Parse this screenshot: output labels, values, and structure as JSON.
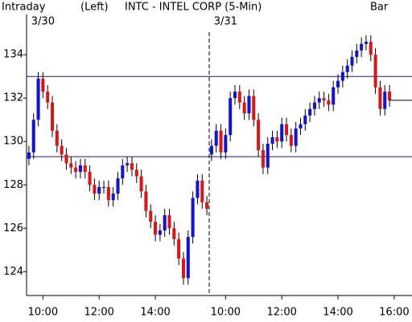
{
  "chart_data": {
    "type": "candlestick",
    "title": "INTC - INTEL CORP (5-Min)",
    "mode_label": "Intraday",
    "axis_side_label": "(Left)",
    "style_label": "Bar",
    "dates": [
      {
        "value": 3,
        "label": "3/30"
      },
      {
        "value": 42,
        "label": "3/31"
      }
    ],
    "xlim": [
      -0.5,
      81.8
    ],
    "xticks": [
      {
        "value": 3,
        "label": "10:00"
      },
      {
        "value": 15,
        "label": "12:00"
      },
      {
        "value": 27,
        "label": "14:00"
      },
      {
        "value": 42,
        "label": "10:00"
      },
      {
        "value": 54,
        "label": "12:00"
      },
      {
        "value": 66,
        "label": "14:00"
      },
      {
        "value": 78,
        "label": "16:00"
      }
    ],
    "ylim": [
      122.9,
      135.6
    ],
    "yticks": [
      124,
      126,
      128,
      130,
      132,
      134
    ],
    "reference_lines": [
      133.0,
      129.3
    ],
    "up_color": "#1414c8",
    "down_color": "#d81818",
    "open": [
      129.2,
      129.5,
      131.0,
      132.9,
      132.3,
      131.8,
      130.5,
      129.8,
      129.4,
      129.0,
      128.8,
      128.6,
      128.9,
      128.6,
      128.0,
      127.6,
      127.9,
      127.9,
      127.3,
      127.6,
      128.3,
      128.9,
      129.0,
      128.7,
      128.4,
      127.7,
      126.8,
      126.3,
      125.7,
      125.9,
      126.6,
      126.0,
      125.5,
      124.6,
      123.7,
      125.6,
      127.4,
      128.2,
      127.2,
      129.4,
      129.8,
      130.5,
      129.5,
      130.3,
      132.0,
      132.3,
      131.8,
      131.3,
      132.1,
      131.0,
      129.6,
      128.8,
      129.9,
      130.2,
      130.0,
      130.8,
      130.3,
      129.8,
      130.6,
      130.8,
      131.2,
      131.5,
      131.8,
      132.0,
      131.9,
      131.7,
      132.5,
      132.8,
      133.2,
      133.5,
      133.9,
      134.2,
      134.5,
      134.6,
      134.0,
      132.5,
      131.5,
      132.3
    ],
    "high": [
      129.8,
      131.3,
      133.2,
      133.2,
      132.6,
      132.1,
      130.8,
      130.1,
      129.7,
      129.3,
      129.1,
      129.2,
      129.2,
      128.9,
      128.3,
      128.2,
      128.2,
      128.2,
      127.9,
      128.6,
      129.2,
      129.3,
      129.3,
      129.0,
      128.7,
      128.0,
      127.1,
      126.6,
      126.2,
      126.9,
      126.9,
      126.3,
      125.8,
      124.9,
      125.9,
      127.7,
      128.5,
      128.5,
      127.5,
      130.1,
      130.8,
      130.8,
      130.6,
      132.3,
      132.6,
      132.6,
      132.1,
      132.4,
      132.4,
      131.3,
      129.9,
      130.2,
      130.5,
      130.5,
      131.1,
      131.1,
      130.6,
      130.9,
      131.1,
      131.5,
      131.8,
      132.1,
      132.3,
      132.3,
      132.2,
      132.8,
      133.1,
      133.5,
      133.8,
      134.2,
      134.5,
      134.8,
      134.9,
      134.9,
      134.3,
      132.8,
      132.6,
      132.6
    ],
    "low": [
      128.9,
      129.2,
      130.7,
      132.0,
      131.5,
      130.2,
      129.5,
      129.1,
      128.7,
      128.5,
      128.3,
      128.3,
      128.3,
      127.7,
      127.3,
      127.3,
      127.6,
      127.0,
      127.0,
      127.3,
      128.0,
      128.6,
      128.4,
      128.1,
      127.4,
      126.5,
      126.0,
      125.4,
      125.4,
      125.6,
      125.7,
      125.2,
      124.3,
      123.4,
      123.4,
      125.3,
      127.1,
      126.9,
      126.6,
      129.1,
      129.5,
      129.2,
      129.2,
      130.0,
      131.7,
      131.5,
      131.0,
      131.0,
      130.7,
      129.3,
      128.5,
      128.5,
      129.6,
      129.7,
      129.7,
      130.0,
      129.5,
      129.5,
      130.3,
      130.5,
      130.9,
      131.2,
      131.5,
      131.6,
      131.4,
      131.4,
      132.2,
      132.5,
      132.9,
      133.2,
      133.6,
      133.9,
      134.2,
      133.7,
      132.2,
      131.2,
      131.2,
      131.6
    ],
    "close": [
      129.5,
      131.0,
      132.9,
      132.3,
      131.8,
      130.5,
      129.8,
      129.4,
      129.0,
      128.8,
      128.6,
      128.9,
      128.6,
      128.0,
      127.6,
      127.9,
      127.9,
      127.3,
      127.6,
      128.3,
      128.9,
      129.0,
      128.7,
      128.4,
      127.7,
      126.8,
      126.3,
      125.7,
      125.9,
      126.6,
      126.0,
      125.5,
      124.6,
      123.7,
      125.6,
      127.4,
      128.2,
      127.2,
      126.9,
      129.8,
      130.5,
      129.5,
      130.3,
      132.0,
      132.3,
      131.8,
      131.3,
      132.1,
      131.0,
      129.6,
      128.8,
      129.9,
      130.2,
      130.0,
      130.8,
      130.3,
      129.8,
      130.6,
      130.8,
      131.2,
      131.5,
      131.8,
      132.0,
      131.9,
      131.7,
      132.5,
      132.8,
      133.2,
      133.5,
      133.9,
      134.2,
      134.5,
      134.6,
      134.0,
      132.5,
      131.5,
      132.3,
      131.9
    ]
  }
}
